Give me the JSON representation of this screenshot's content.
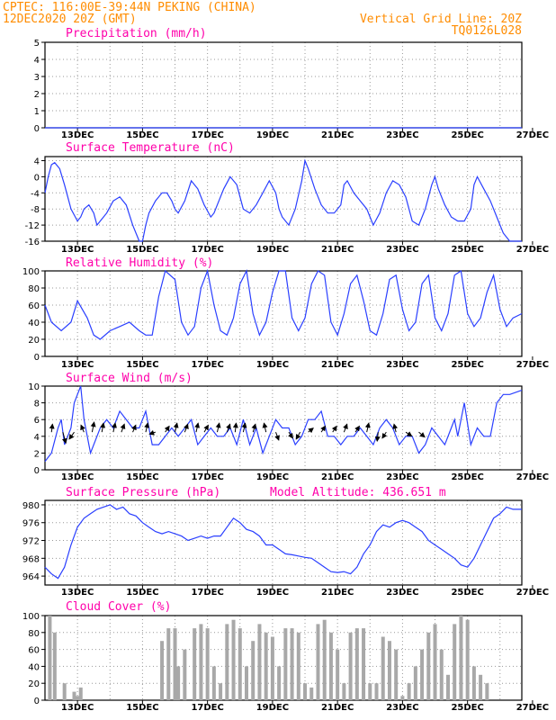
{
  "header": {
    "line1_left": "CPTEC:   116:00E-39:44N   PEKING (CHINA)",
    "line2_left": "12DEC2020 20Z (GMT)",
    "line1_right": "Vertical Grid Line: 20Z",
    "line2_right": "TQ0126L028"
  },
  "colors": {
    "header": "#ff8c00",
    "title": "#ff00aa",
    "line": "#2a3fff",
    "grid": "#999999",
    "bar": "#a8a8a8",
    "arrow": "#000000"
  },
  "x_ticks": [
    "13DEC",
    "15DEC",
    "17DEC",
    "19DEC",
    "21DEC",
    "23DEC",
    "25DEC",
    "27DEC"
  ],
  "chart_data": [
    {
      "type": "line",
      "title": "Precipitation (mm/h)",
      "ylim": [
        0,
        5
      ],
      "yticks": [
        0,
        1,
        2,
        3,
        4,
        5
      ],
      "series": [
        {
          "x": [
            0.0,
            14.67
          ],
          "y": [
            0.0,
            0.0
          ]
        }
      ]
    },
    {
      "type": "line",
      "title": "Surface Temperature (nC)",
      "ylim": [
        -16,
        5
      ],
      "yticks": [
        -16,
        -12,
        -8,
        -4,
        0,
        4
      ],
      "series": [
        {
          "x": [
            0.0,
            0.1,
            0.2,
            0.3,
            0.45,
            0.6,
            0.8,
            1.0,
            1.1,
            1.2,
            1.35,
            1.5,
            1.6,
            1.7,
            1.9,
            2.1,
            2.3,
            2.5,
            2.7,
            2.9,
            3.0,
            3.1,
            3.2,
            3.4,
            3.6,
            3.75,
            3.9,
            4.0,
            4.1,
            4.3,
            4.5,
            4.7,
            4.9,
            5.1,
            5.2,
            5.3,
            5.5,
            5.7,
            5.9,
            6.0,
            6.1,
            6.3,
            6.5,
            6.7,
            6.9,
            7.1,
            7.2,
            7.3,
            7.5,
            7.7,
            7.9,
            8.0,
            8.1,
            8.3,
            8.5,
            8.7,
            8.9,
            9.1,
            9.2,
            9.3,
            9.5,
            9.7,
            9.9,
            10.0,
            10.1,
            10.3,
            10.5,
            10.7,
            10.9,
            11.1,
            11.2,
            11.3,
            11.5,
            11.7,
            11.9,
            12.0,
            12.1,
            12.3,
            12.5,
            12.7,
            12.9,
            13.1,
            13.2,
            13.3,
            13.5,
            13.7,
            13.9,
            14.0,
            14.1,
            14.3,
            14.67
          ],
          "y": [
            -4,
            0,
            3,
            3.5,
            2,
            -2,
            -8,
            -11,
            -10,
            -8,
            -7,
            -9,
            -12,
            -11,
            -9,
            -6,
            -5,
            -7,
            -12,
            -16,
            -16,
            -12,
            -9,
            -6,
            -4,
            -4,
            -6,
            -8,
            -9,
            -6,
            -1,
            -3,
            -7,
            -10,
            -9,
            -7,
            -3,
            0,
            -2,
            -5,
            -8,
            -9,
            -7,
            -4,
            -1,
            -4,
            -8,
            -10,
            -12,
            -8,
            -1,
            4,
            2,
            -3,
            -7,
            -9,
            -9,
            -7,
            -2,
            -1,
            -4,
            -6,
            -8,
            -10,
            -12,
            -9,
            -4,
            -1,
            -2,
            -5,
            -8,
            -11,
            -12,
            -8,
            -2,
            0,
            -3,
            -7,
            -10,
            -11,
            -11,
            -8,
            -2,
            0,
            -3,
            -6,
            -10,
            -12,
            -14,
            -16,
            -16
          ]
        }
      ]
    },
    {
      "type": "line",
      "title": "Relative Humidity (%)",
      "ylim": [
        0,
        100
      ],
      "yticks": [
        0,
        20,
        40,
        60,
        80,
        100
      ],
      "series": [
        {
          "x": [
            0.0,
            0.2,
            0.5,
            0.8,
            1.0,
            1.3,
            1.5,
            1.7,
            2.0,
            2.3,
            2.6,
            2.9,
            3.1,
            3.3,
            3.5,
            3.7,
            4.0,
            4.2,
            4.4,
            4.6,
            4.8,
            5.0,
            5.2,
            5.4,
            5.6,
            5.8,
            6.0,
            6.2,
            6.4,
            6.6,
            6.8,
            7.0,
            7.2,
            7.4,
            7.6,
            7.8,
            8.0,
            8.2,
            8.4,
            8.6,
            8.8,
            9.0,
            9.2,
            9.4,
            9.6,
            9.8,
            10.0,
            10.2,
            10.4,
            10.6,
            10.8,
            11.0,
            11.2,
            11.4,
            11.6,
            11.8,
            12.0,
            12.2,
            12.4,
            12.6,
            12.8,
            13.0,
            13.2,
            13.4,
            13.6,
            13.8,
            14.0,
            14.2,
            14.4,
            14.67
          ],
          "y": [
            60,
            40,
            30,
            40,
            65,
            45,
            25,
            20,
            30,
            35,
            40,
            30,
            25,
            25,
            70,
            100,
            90,
            40,
            25,
            35,
            80,
            100,
            60,
            30,
            25,
            45,
            85,
            100,
            50,
            25,
            40,
            75,
            100,
            100,
            45,
            30,
            45,
            85,
            100,
            95,
            40,
            25,
            50,
            85,
            95,
            65,
            30,
            25,
            50,
            90,
            95,
            55,
            30,
            40,
            85,
            95,
            45,
            30,
            50,
            95,
            100,
            50,
            35,
            45,
            75,
            95,
            55,
            35,
            45,
            50
          ]
        }
      ]
    },
    {
      "type": "line",
      "title": "Surface Wind (m/s)",
      "ylim": [
        0,
        10
      ],
      "yticks": [
        0,
        2,
        4,
        6,
        8,
        10
      ],
      "series": [
        {
          "x": [
            0.0,
            0.2,
            0.4,
            0.5,
            0.6,
            0.8,
            0.9,
            1.0,
            1.1,
            1.2,
            1.4,
            1.6,
            1.7,
            1.9,
            2.1,
            2.3,
            2.5,
            2.7,
            2.9,
            3.1,
            3.3,
            3.5,
            3.7,
            3.9,
            4.1,
            4.3,
            4.5,
            4.7,
            4.9,
            5.1,
            5.3,
            5.5,
            5.7,
            5.9,
            6.1,
            6.3,
            6.5,
            6.7,
            6.9,
            7.1,
            7.3,
            7.5,
            7.7,
            7.9,
            8.1,
            8.3,
            8.5,
            8.7,
            8.9,
            9.1,
            9.3,
            9.5,
            9.7,
            9.9,
            10.1,
            10.3,
            10.5,
            10.7,
            10.9,
            11.1,
            11.3,
            11.5,
            11.7,
            11.9,
            12.1,
            12.3,
            12.5,
            12.6,
            12.7,
            12.9,
            13.1,
            13.3,
            13.5,
            13.7,
            13.9,
            14.1,
            14.3,
            14.67
          ],
          "y": [
            1,
            2,
            5,
            6,
            3,
            5,
            8,
            9,
            10,
            6,
            2,
            4,
            5,
            6,
            5,
            7,
            6,
            5,
            5,
            7,
            3,
            3,
            4,
            5,
            4,
            5,
            6,
            3,
            4,
            5,
            4,
            4,
            5,
            3,
            6,
            3,
            5,
            2,
            4,
            6,
            5,
            5,
            3,
            4,
            6,
            6,
            7,
            4,
            4,
            3,
            4,
            4,
            5,
            4,
            3,
            5,
            6,
            5,
            3,
            4,
            4,
            2,
            3,
            5,
            4,
            3,
            5,
            6,
            4,
            8,
            3,
            5,
            4,
            4,
            8,
            9,
            9,
            9.5
          ]
        }
      ],
      "arrows": [
        {
          "x": 0.2,
          "dx": 0.05,
          "dy": -0.4
        },
        {
          "x": 0.55,
          "dx": 0.15,
          "dy": 0.55
        },
        {
          "x": 0.9,
          "dx": -0.25,
          "dy": 0.35
        },
        {
          "x": 1.2,
          "dx": -0.15,
          "dy": -0.35
        },
        {
          "x": 1.45,
          "dx": 0.1,
          "dy": -0.5
        },
        {
          "x": 1.75,
          "dx": 0.08,
          "dy": -0.45
        },
        {
          "x": 2.1,
          "dx": 0.1,
          "dy": -0.45
        },
        {
          "x": 2.35,
          "dx": 0.15,
          "dy": -0.4
        },
        {
          "x": 2.7,
          "dx": 0.15,
          "dy": -0.35
        },
        {
          "x": 3.1,
          "dx": 0.1,
          "dy": -0.45
        },
        {
          "x": 3.4,
          "dx": -0.3,
          "dy": 0.1
        },
        {
          "x": 3.7,
          "dx": 0.2,
          "dy": -0.3
        },
        {
          "x": 4.0,
          "dx": 0.1,
          "dy": -0.45
        },
        {
          "x": 4.3,
          "dx": 0.15,
          "dy": -0.4
        },
        {
          "x": 4.65,
          "dx": 0.1,
          "dy": -0.45
        },
        {
          "x": 4.9,
          "dx": 0.2,
          "dy": -0.35
        },
        {
          "x": 5.3,
          "dx": 0.1,
          "dy": -0.45
        },
        {
          "x": 5.6,
          "dx": 0.15,
          "dy": -0.4
        },
        {
          "x": 5.85,
          "dx": 0.05,
          "dy": -0.45
        },
        {
          "x": 6.1,
          "dx": 0.1,
          "dy": -0.45
        },
        {
          "x": 6.4,
          "dx": 0.12,
          "dy": -0.4
        },
        {
          "x": 6.8,
          "dx": -0.1,
          "dy": -0.45
        },
        {
          "x": 7.1,
          "dx": 0.15,
          "dy": 0.4
        },
        {
          "x": 7.5,
          "dx": 0.2,
          "dy": 0.3
        },
        {
          "x": 7.85,
          "dx": -0.2,
          "dy": 0.35
        },
        {
          "x": 8.1,
          "dx": 0.25,
          "dy": -0.2
        },
        {
          "x": 8.5,
          "dx": 0.2,
          "dy": -0.3
        },
        {
          "x": 8.85,
          "dx": 0.2,
          "dy": -0.3
        },
        {
          "x": 9.2,
          "dx": 0.15,
          "dy": -0.4
        },
        {
          "x": 9.55,
          "dx": 0.2,
          "dy": -0.3
        },
        {
          "x": 9.9,
          "dx": 0.1,
          "dy": -0.45
        },
        {
          "x": 10.25,
          "dx": -0.05,
          "dy": 0.45
        },
        {
          "x": 10.5,
          "dx": -0.2,
          "dy": 0.3
        },
        {
          "x": 10.8,
          "dx": -0.1,
          "dy": -0.4
        },
        {
          "x": 11.1,
          "dx": 0.3,
          "dy": 0.2
        },
        {
          "x": 11.5,
          "dx": 0.3,
          "dy": 0.25
        }
      ]
    },
    {
      "type": "line",
      "title": "Surface Pressure (hPa)",
      "note": "Model Altitude: 436.651 m",
      "ylim": [
        962,
        981
      ],
      "yticks": [
        964,
        968,
        972,
        976,
        980
      ],
      "series": [
        {
          "x": [
            0.0,
            0.2,
            0.4,
            0.6,
            0.8,
            1.0,
            1.2,
            1.4,
            1.6,
            1.8,
            2.0,
            2.2,
            2.4,
            2.6,
            2.8,
            3.0,
            3.2,
            3.4,
            3.6,
            3.8,
            4.0,
            4.2,
            4.4,
            4.6,
            4.8,
            5.0,
            5.2,
            5.4,
            5.6,
            5.8,
            6.0,
            6.2,
            6.4,
            6.6,
            6.8,
            7.0,
            7.2,
            7.4,
            7.6,
            7.8,
            8.0,
            8.2,
            8.4,
            8.6,
            8.8,
            9.0,
            9.2,
            9.4,
            9.6,
            9.8,
            10.0,
            10.2,
            10.4,
            10.6,
            10.8,
            11.0,
            11.2,
            11.4,
            11.6,
            11.8,
            12.0,
            12.2,
            12.4,
            12.6,
            12.8,
            13.0,
            13.2,
            13.4,
            13.6,
            13.8,
            14.0,
            14.2,
            14.4,
            14.67
          ],
          "y": [
            966,
            964.5,
            963.5,
            966,
            971,
            975,
            977,
            978,
            979,
            979.5,
            980,
            979,
            979.5,
            978,
            977.5,
            976,
            975,
            974,
            973.5,
            974,
            973.5,
            973,
            972,
            972.5,
            973,
            972.5,
            973,
            973,
            975,
            977,
            976,
            974.5,
            974,
            973,
            971,
            971,
            970,
            969,
            968.8,
            968.5,
            968.2,
            968,
            967,
            966,
            965,
            964.8,
            965,
            964.5,
            966,
            969,
            971,
            974,
            975.5,
            975,
            976,
            976.5,
            976,
            975,
            974,
            972,
            971,
            970,
            969,
            968,
            966.5,
            966,
            968,
            971,
            974,
            977,
            978,
            979.5,
            979,
            979
          ]
        }
      ]
    },
    {
      "type": "bar",
      "title": "Cloud Cover (%)",
      "ylim": [
        0,
        100
      ],
      "yticks": [
        0,
        20,
        40,
        60,
        80,
        100
      ],
      "x": [
        0.15,
        0.3,
        0.6,
        0.9,
        1.0,
        1.1,
        3.6,
        3.8,
        4.0,
        4.1,
        4.3,
        4.6,
        4.8,
        5.0,
        5.2,
        5.4,
        5.6,
        5.8,
        6.0,
        6.2,
        6.4,
        6.6,
        6.8,
        7.0,
        7.2,
        7.4,
        7.6,
        7.8,
        8.0,
        8.2,
        8.4,
        8.6,
        8.8,
        9.0,
        9.2,
        9.4,
        9.6,
        9.8,
        10.0,
        10.2,
        10.4,
        10.6,
        10.8,
        11.0,
        11.2,
        11.4,
        11.6,
        11.8,
        12.0,
        12.2,
        12.4,
        12.6,
        12.8,
        13.0,
        13.2,
        13.4,
        13.6
      ],
      "values": [
        100,
        80,
        20,
        10,
        5,
        15,
        70,
        85,
        85,
        40,
        60,
        85,
        90,
        85,
        40,
        20,
        90,
        95,
        85,
        40,
        70,
        90,
        80,
        75,
        40,
        85,
        85,
        80,
        20,
        15,
        90,
        95,
        80,
        60,
        20,
        80,
        85,
        85,
        20,
        20,
        75,
        70,
        60,
        5,
        20,
        40,
        60,
        80,
        90,
        60,
        30,
        90,
        100,
        95,
        40,
        30,
        20
      ]
    }
  ]
}
